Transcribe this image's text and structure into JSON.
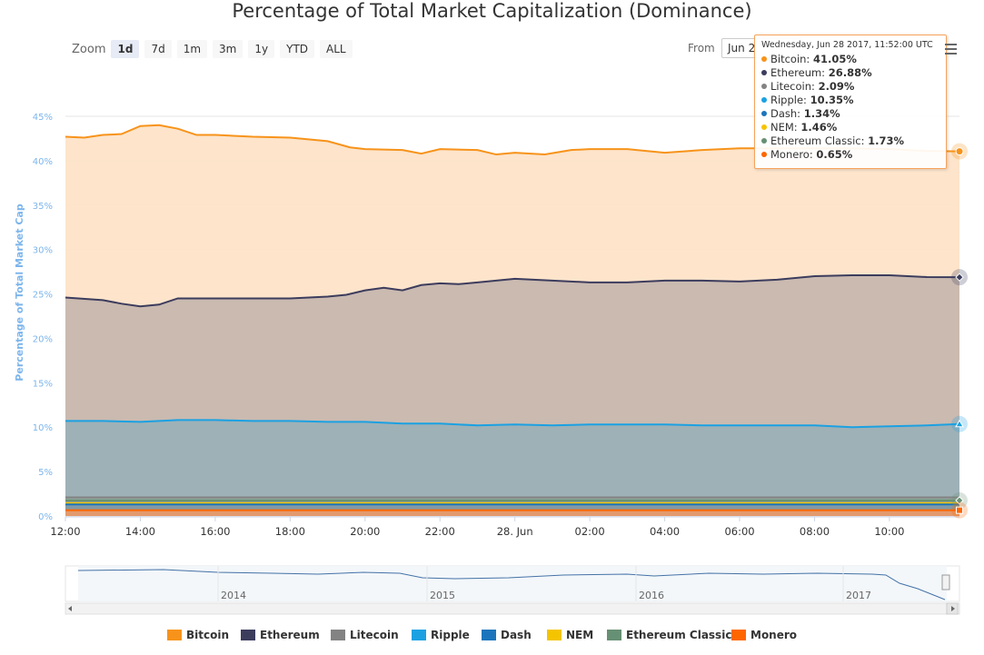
{
  "title": "Percentage of Total Market Capitalization (Dominance)",
  "zoom": {
    "label": "Zoom",
    "buttons": [
      "1d",
      "7d",
      "1m",
      "3m",
      "1y",
      "YTD",
      "ALL"
    ],
    "active": "1d"
  },
  "range": {
    "from_label": "From",
    "from_value": "Jun 2"
  },
  "tooltip": {
    "header": "Wednesday, Jun 28 2017, 11:52:00 UTC",
    "rows": [
      {
        "name": "Bitcoin",
        "value": "41.05%",
        "color": "#f7931a"
      },
      {
        "name": "Ethereum",
        "value": "26.88%",
        "color": "#3c3c5d"
      },
      {
        "name": "Litecoin",
        "value": "2.09%",
        "color": "#838383"
      },
      {
        "name": "Ripple",
        "value": "10.35%",
        "color": "#1ba1e2"
      },
      {
        "name": "Dash",
        "value": "1.34%",
        "color": "#1c75bc"
      },
      {
        "name": "NEM",
        "value": "1.46%",
        "color": "#f5c400"
      },
      {
        "name": "Ethereum Classic",
        "value": "1.73%",
        "color": "#669073"
      },
      {
        "name": "Monero",
        "value": "0.65%",
        "color": "#ff6600"
      }
    ]
  },
  "chart_data": {
    "type": "area",
    "title": "Percentage of Total Market Capitalization (Dominance)",
    "ylabel": "Percentage of Total Market Cap",
    "ylim": [
      0,
      45
    ],
    "yticks": [
      "0%",
      "5%",
      "10%",
      "15%",
      "20%",
      "25%",
      "30%",
      "35%",
      "40%",
      "45%"
    ],
    "xlim_hours": [
      0,
      23.87
    ],
    "xticks": [
      {
        "hour": 0,
        "label": "12:00"
      },
      {
        "hour": 2,
        "label": "14:00"
      },
      {
        "hour": 4,
        "label": "16:00"
      },
      {
        "hour": 6,
        "label": "18:00"
      },
      {
        "hour": 8,
        "label": "20:00"
      },
      {
        "hour": 10,
        "label": "22:00"
      },
      {
        "hour": 12,
        "label": "28. Jun"
      },
      {
        "hour": 14,
        "label": "02:00"
      },
      {
        "hour": 16,
        "label": "04:00"
      },
      {
        "hour": 18,
        "label": "06:00"
      },
      {
        "hour": 20,
        "label": "08:00"
      },
      {
        "hour": 22,
        "label": "10:00"
      }
    ],
    "grid": true,
    "legend_position": "bottom",
    "series": [
      {
        "name": "Bitcoin",
        "color": "#f7931a",
        "fill": "#fde3c8",
        "points": [
          [
            0,
            42.7
          ],
          [
            0.5,
            42.6
          ],
          [
            1,
            42.9
          ],
          [
            1.5,
            43.0
          ],
          [
            2,
            43.9
          ],
          [
            2.5,
            44.0
          ],
          [
            3,
            43.6
          ],
          [
            3.5,
            42.9
          ],
          [
            4,
            42.9
          ],
          [
            5,
            42.7
          ],
          [
            6,
            42.6
          ],
          [
            7,
            42.2
          ],
          [
            7.6,
            41.5
          ],
          [
            8,
            41.3
          ],
          [
            9,
            41.2
          ],
          [
            9.5,
            40.8
          ],
          [
            10,
            41.3
          ],
          [
            11,
            41.2
          ],
          [
            11.5,
            40.7
          ],
          [
            12,
            40.9
          ],
          [
            12.8,
            40.7
          ],
          [
            13.5,
            41.2
          ],
          [
            14,
            41.3
          ],
          [
            15,
            41.3
          ],
          [
            16,
            40.9
          ],
          [
            17,
            41.2
          ],
          [
            18,
            41.4
          ],
          [
            19,
            41.4
          ],
          [
            20,
            41.4
          ],
          [
            21,
            41.4
          ],
          [
            22,
            41.3
          ],
          [
            23,
            41.1
          ],
          [
            23.87,
            41.05
          ]
        ]
      },
      {
        "name": "Ethereum",
        "color": "#3c3c5d",
        "fill": "#c7b7ae",
        "points": [
          [
            0,
            24.6
          ],
          [
            1,
            24.3
          ],
          [
            1.5,
            23.9
          ],
          [
            2,
            23.6
          ],
          [
            2.5,
            23.8
          ],
          [
            3,
            24.5
          ],
          [
            4,
            24.5
          ],
          [
            5,
            24.5
          ],
          [
            6,
            24.5
          ],
          [
            7,
            24.7
          ],
          [
            7.5,
            24.9
          ],
          [
            8,
            25.4
          ],
          [
            8.5,
            25.7
          ],
          [
            9,
            25.4
          ],
          [
            9.5,
            26.0
          ],
          [
            10,
            26.2
          ],
          [
            10.5,
            26.1
          ],
          [
            11,
            26.3
          ],
          [
            11.5,
            26.5
          ],
          [
            12,
            26.7
          ],
          [
            13,
            26.5
          ],
          [
            14,
            26.3
          ],
          [
            15,
            26.3
          ],
          [
            16,
            26.5
          ],
          [
            17,
            26.5
          ],
          [
            18,
            26.4
          ],
          [
            19,
            26.6
          ],
          [
            20,
            27.0
          ],
          [
            21,
            27.1
          ],
          [
            22,
            27.1
          ],
          [
            23,
            26.9
          ],
          [
            23.87,
            26.88
          ]
        ]
      },
      {
        "name": "Ripple",
        "color": "#1ba1e2",
        "fill": "#9bb0b7",
        "points": [
          [
            0,
            10.7
          ],
          [
            1,
            10.7
          ],
          [
            2,
            10.6
          ],
          [
            3,
            10.8
          ],
          [
            4,
            10.8
          ],
          [
            5,
            10.7
          ],
          [
            6,
            10.7
          ],
          [
            7,
            10.6
          ],
          [
            8,
            10.6
          ],
          [
            9,
            10.4
          ],
          [
            10,
            10.4
          ],
          [
            11,
            10.2
          ],
          [
            12,
            10.3
          ],
          [
            13,
            10.2
          ],
          [
            14,
            10.3
          ],
          [
            15,
            10.3
          ],
          [
            16,
            10.3
          ],
          [
            17,
            10.2
          ],
          [
            18,
            10.2
          ],
          [
            19,
            10.2
          ],
          [
            20,
            10.2
          ],
          [
            21,
            10.0
          ],
          [
            22,
            10.1
          ],
          [
            23,
            10.2
          ],
          [
            23.87,
            10.35
          ]
        ]
      },
      {
        "name": "Litecoin",
        "color": "#838383",
        "fill": "#90a79c",
        "values_approx": 2.1
      },
      {
        "name": "Ethereum Classic",
        "color": "#669073",
        "fill": "#8c9e8f",
        "values_approx": 1.75
      },
      {
        "name": "NEM",
        "color": "#f5c400",
        "fill": "#b3b08a",
        "values_approx": 1.45
      },
      {
        "name": "Dash",
        "color": "#1c75bc",
        "fill": "#7f98a6",
        "values_approx": 1.3
      },
      {
        "name": "Monero",
        "color": "#ff6600",
        "fill": "#e89a6a",
        "values_approx": 0.65
      }
    ]
  },
  "navigator": {
    "labels": [
      "2014",
      "2015",
      "2016",
      "2017"
    ]
  },
  "legend": [
    "Bitcoin",
    "Ethereum",
    "Litecoin",
    "Ripple",
    "Dash",
    "NEM",
    "Ethereum Classic",
    "Monero"
  ],
  "legend_colors": [
    "#f7931a",
    "#3c3c5d",
    "#838383",
    "#1ba1e2",
    "#1c75bc",
    "#f5c400",
    "#669073",
    "#ff6600"
  ]
}
